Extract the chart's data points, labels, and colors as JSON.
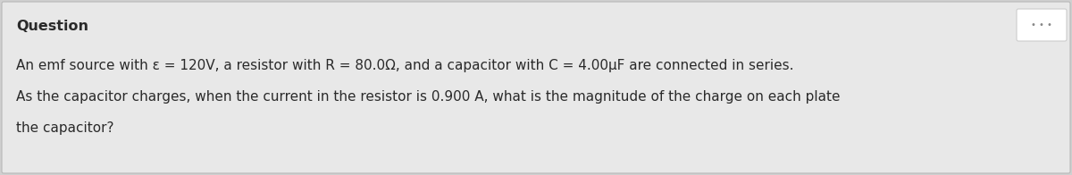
{
  "background_color": "#d0d0d0",
  "panel_color": "#e8e8e8",
  "title": "Question",
  "title_fontsize": 11.5,
  "title_fontweight": "bold",
  "title_color": "#2a2a2a",
  "line1": "An emf source with ε = 120V, a resistor with R = 80.0Ω, and a capacitor with C = 4.00μF are connected in series.",
  "line2": "As the capacitor charges, when the current in the resistor is 0.900 A, what is the magnitude of the charge on each plate",
  "line3": "the capacitor?",
  "body_fontsize": 11.0,
  "body_color": "#2a2a2a",
  "dots_text": "• • •",
  "dots_fontsize": 7,
  "dots_color": "#888888",
  "button_color": "#ffffff",
  "button_edge_color": "#cccccc"
}
